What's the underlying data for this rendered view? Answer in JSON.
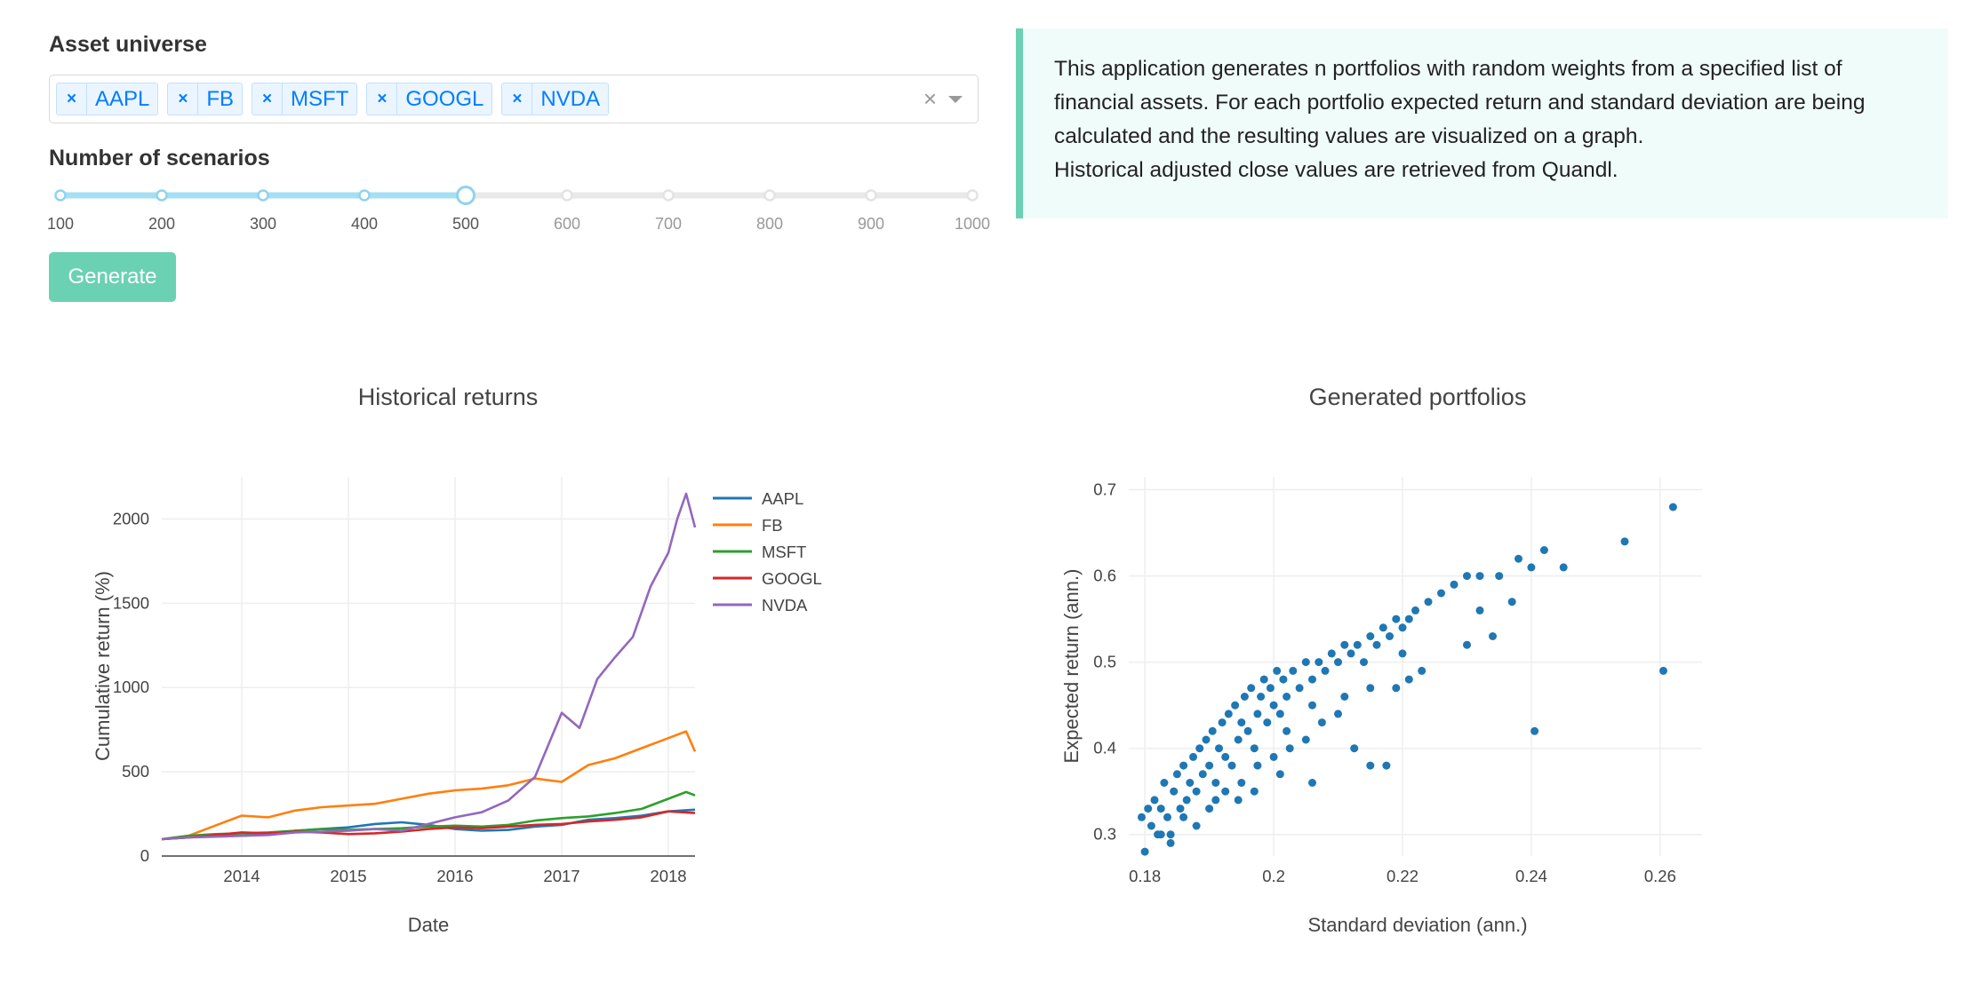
{
  "controls": {
    "asset_label": "Asset universe",
    "assets": [
      "AAPL",
      "FB",
      "MSFT",
      "GOOGL",
      "NVDA"
    ],
    "chip_remove": "×",
    "clear": "×",
    "scenarios_label": "Number of scenarios",
    "slider": {
      "marks": [
        "100",
        "200",
        "300",
        "400",
        "500",
        "600",
        "700",
        "800",
        "900",
        "1000"
      ],
      "value": 500,
      "active_color": "#a6dff3",
      "inactive_color": "#e9e9e9"
    },
    "generate_label": "Generate"
  },
  "info": {
    "lines": [
      "This application generates n portfolios with random weights from a specified list of",
      "financial assets. For each portfolio expected return and standard deviation are being",
      "calculated and the resulting values are visualized on a graph.",
      "Historical adjusted close values are retrieved from Quandl."
    ]
  },
  "chart_data": [
    {
      "type": "line",
      "title": "Historical returns",
      "xlabel": "Date",
      "ylabel": "Cumulative return (%)",
      "x_ticks": [
        "2014",
        "2015",
        "2016",
        "2017",
        "2018"
      ],
      "y_ticks": [
        0,
        500,
        1000,
        1500,
        2000
      ],
      "xlim": [
        "2013-04",
        "2018-04"
      ],
      "ylim": [
        0,
        2250
      ],
      "grid": true,
      "legend": "right",
      "series": [
        {
          "name": "AAPL",
          "color": "#1f77b4",
          "points": [
            [
              "2013-04",
              100
            ],
            [
              "2013-07",
              110
            ],
            [
              "2013-10",
              125
            ],
            [
              "2014-01",
              120
            ],
            [
              "2014-04",
              130
            ],
            [
              "2014-07",
              150
            ],
            [
              "2014-10",
              160
            ],
            [
              "2015-01",
              170
            ],
            [
              "2015-04",
              190
            ],
            [
              "2015-07",
              200
            ],
            [
              "2015-10",
              185
            ],
            [
              "2016-01",
              160
            ],
            [
              "2016-04",
              150
            ],
            [
              "2016-07",
              155
            ],
            [
              "2016-10",
              175
            ],
            [
              "2017-01",
              185
            ],
            [
              "2017-04",
              215
            ],
            [
              "2017-07",
              225
            ],
            [
              "2017-10",
              240
            ],
            [
              "2018-01",
              265
            ],
            [
              "2018-04",
              275
            ]
          ]
        },
        {
          "name": "FB",
          "color": "#ff7f0e",
          "points": [
            [
              "2013-04",
              100
            ],
            [
              "2013-07",
              120
            ],
            [
              "2013-10",
              180
            ],
            [
              "2014-01",
              240
            ],
            [
              "2014-04",
              230
            ],
            [
              "2014-07",
              270
            ],
            [
              "2014-10",
              290
            ],
            [
              "2015-01",
              300
            ],
            [
              "2015-04",
              310
            ],
            [
              "2015-07",
              340
            ],
            [
              "2015-10",
              370
            ],
            [
              "2016-01",
              390
            ],
            [
              "2016-04",
              400
            ],
            [
              "2016-07",
              420
            ],
            [
              "2016-10",
              460
            ],
            [
              "2017-01",
              440
            ],
            [
              "2017-04",
              540
            ],
            [
              "2017-07",
              580
            ],
            [
              "2017-10",
              640
            ],
            [
              "2018-01",
              700
            ],
            [
              "2018-03",
              740
            ],
            [
              "2018-04",
              620
            ]
          ]
        },
        {
          "name": "MSFT",
          "color": "#2ca02c",
          "points": [
            [
              "2013-04",
              100
            ],
            [
              "2013-07",
              120
            ],
            [
              "2013-10",
              130
            ],
            [
              "2014-01",
              135
            ],
            [
              "2014-04",
              140
            ],
            [
              "2014-07",
              150
            ],
            [
              "2014-10",
              160
            ],
            [
              "2015-01",
              155
            ],
            [
              "2015-04",
              160
            ],
            [
              "2015-07",
              165
            ],
            [
              "2015-10",
              175
            ],
            [
              "2016-01",
              180
            ],
            [
              "2016-04",
              175
            ],
            [
              "2016-07",
              185
            ],
            [
              "2016-10",
              210
            ],
            [
              "2017-01",
              225
            ],
            [
              "2017-04",
              235
            ],
            [
              "2017-07",
              255
            ],
            [
              "2017-10",
              280
            ],
            [
              "2018-01",
              340
            ],
            [
              "2018-03",
              380
            ],
            [
              "2018-04",
              360
            ]
          ]
        },
        {
          "name": "GOOGL",
          "color": "#d62728",
          "points": [
            [
              "2013-04",
              100
            ],
            [
              "2013-07",
              110
            ],
            [
              "2013-10",
              125
            ],
            [
              "2014-01",
              140
            ],
            [
              "2014-04",
              135
            ],
            [
              "2014-07",
              145
            ],
            [
              "2014-10",
              140
            ],
            [
              "2015-01",
              130
            ],
            [
              "2015-04",
              135
            ],
            [
              "2015-07",
              145
            ],
            [
              "2015-10",
              160
            ],
            [
              "2016-01",
              170
            ],
            [
              "2016-04",
              165
            ],
            [
              "2016-07",
              175
            ],
            [
              "2016-10",
              185
            ],
            [
              "2017-01",
              190
            ],
            [
              "2017-04",
              205
            ],
            [
              "2017-07",
              215
            ],
            [
              "2017-10",
              230
            ],
            [
              "2018-01",
              265
            ],
            [
              "2018-04",
              255
            ]
          ]
        },
        {
          "name": "NVDA",
          "color": "#9467bd",
          "points": [
            [
              "2013-04",
              100
            ],
            [
              "2013-07",
              110
            ],
            [
              "2013-10",
              115
            ],
            [
              "2014-01",
              120
            ],
            [
              "2014-04",
              125
            ],
            [
              "2014-07",
              140
            ],
            [
              "2014-10",
              145
            ],
            [
              "2015-01",
              150
            ],
            [
              "2015-04",
              160
            ],
            [
              "2015-07",
              150
            ],
            [
              "2015-10",
              190
            ],
            [
              "2016-01",
              230
            ],
            [
              "2016-04",
              260
            ],
            [
              "2016-07",
              330
            ],
            [
              "2016-10",
              470
            ],
            [
              "2017-01",
              850
            ],
            [
              "2017-03",
              760
            ],
            [
              "2017-05",
              1050
            ],
            [
              "2017-07",
              1180
            ],
            [
              "2017-09",
              1300
            ],
            [
              "2017-11",
              1600
            ],
            [
              "2018-01",
              1800
            ],
            [
              "2018-02",
              2000
            ],
            [
              "2018-03",
              2150
            ],
            [
              "2018-04",
              1950
            ]
          ]
        }
      ]
    },
    {
      "type": "scatter",
      "title": "Generated portfolios",
      "xlabel": "Standard deviation (ann.)",
      "ylabel": "Expected return (ann.)",
      "x_ticks": [
        "0.18",
        "0.2",
        "0.22",
        "0.24",
        "0.26"
      ],
      "y_ticks": [
        "0.3",
        "0.4",
        "0.5",
        "0.6",
        "0.7"
      ],
      "xlim": [
        0.1775,
        0.2665
      ],
      "ylim": [
        0.275,
        0.715
      ],
      "grid": true,
      "marker_color": "#1f77b4",
      "points": [
        [
          0.1795,
          0.32
        ],
        [
          0.18,
          0.28
        ],
        [
          0.1805,
          0.33
        ],
        [
          0.181,
          0.31
        ],
        [
          0.1815,
          0.34
        ],
        [
          0.182,
          0.3
        ],
        [
          0.1825,
          0.33
        ],
        [
          0.183,
          0.36
        ],
        [
          0.1835,
          0.32
        ],
        [
          0.184,
          0.3
        ],
        [
          0.1845,
          0.35
        ],
        [
          0.185,
          0.37
        ],
        [
          0.1855,
          0.33
        ],
        [
          0.186,
          0.38
        ],
        [
          0.1865,
          0.34
        ],
        [
          0.187,
          0.36
        ],
        [
          0.1875,
          0.39
        ],
        [
          0.188,
          0.35
        ],
        [
          0.1885,
          0.4
        ],
        [
          0.189,
          0.37
        ],
        [
          0.1895,
          0.41
        ],
        [
          0.19,
          0.38
        ],
        [
          0.1905,
          0.42
        ],
        [
          0.191,
          0.36
        ],
        [
          0.1915,
          0.4
        ],
        [
          0.192,
          0.43
        ],
        [
          0.1925,
          0.39
        ],
        [
          0.193,
          0.44
        ],
        [
          0.1935,
          0.38
        ],
        [
          0.194,
          0.45
        ],
        [
          0.1945,
          0.41
        ],
        [
          0.195,
          0.43
        ],
        [
          0.1955,
          0.46
        ],
        [
          0.196,
          0.42
        ],
        [
          0.1965,
          0.47
        ],
        [
          0.197,
          0.4
        ],
        [
          0.1975,
          0.44
        ],
        [
          0.198,
          0.46
        ],
        [
          0.1985,
          0.48
        ],
        [
          0.199,
          0.43
        ],
        [
          0.1995,
          0.47
        ],
        [
          0.2,
          0.45
        ],
        [
          0.2005,
          0.49
        ],
        [
          0.201,
          0.44
        ],
        [
          0.2015,
          0.48
        ],
        [
          0.202,
          0.46
        ],
        [
          0.203,
          0.49
        ],
        [
          0.204,
          0.47
        ],
        [
          0.205,
          0.5
        ],
        [
          0.206,
          0.48
        ],
        [
          0.207,
          0.5
        ],
        [
          0.208,
          0.49
        ],
        [
          0.209,
          0.51
        ],
        [
          0.21,
          0.5
        ],
        [
          0.211,
          0.52
        ],
        [
          0.212,
          0.51
        ],
        [
          0.213,
          0.52
        ],
        [
          0.214,
          0.5
        ],
        [
          0.215,
          0.53
        ],
        [
          0.216,
          0.52
        ],
        [
          0.217,
          0.54
        ],
        [
          0.218,
          0.53
        ],
        [
          0.219,
          0.55
        ],
        [
          0.22,
          0.54
        ],
        [
          0.221,
          0.55
        ],
        [
          0.222,
          0.56
        ],
        [
          0.224,
          0.57
        ],
        [
          0.226,
          0.58
        ],
        [
          0.228,
          0.59
        ],
        [
          0.23,
          0.6
        ],
        [
          0.232,
          0.6
        ],
        [
          0.235,
          0.6
        ],
        [
          0.238,
          0.62
        ],
        [
          0.24,
          0.61
        ],
        [
          0.242,
          0.63
        ],
        [
          0.245,
          0.61
        ],
        [
          0.2545,
          0.64
        ],
        [
          0.262,
          0.68
        ],
        [
          0.2605,
          0.49
        ],
        [
          0.2405,
          0.42
        ],
        [
          0.19,
          0.33
        ],
        [
          0.1925,
          0.35
        ],
        [
          0.195,
          0.36
        ],
        [
          0.1975,
          0.38
        ],
        [
          0.2,
          0.39
        ],
        [
          0.2025,
          0.4
        ],
        [
          0.205,
          0.41
        ],
        [
          0.2075,
          0.43
        ],
        [
          0.21,
          0.44
        ],
        [
          0.2125,
          0.4
        ],
        [
          0.215,
          0.38
        ],
        [
          0.2175,
          0.38
        ],
        [
          0.219,
          0.47
        ],
        [
          0.221,
          0.48
        ],
        [
          0.223,
          0.49
        ],
        [
          0.1945,
          0.34
        ],
        [
          0.197,
          0.35
        ],
        [
          0.201,
          0.37
        ],
        [
          0.206,
          0.36
        ],
        [
          0.202,
          0.42
        ],
        [
          0.206,
          0.45
        ],
        [
          0.211,
          0.46
        ],
        [
          0.215,
          0.47
        ],
        [
          0.232,
          0.56
        ],
        [
          0.23,
          0.52
        ],
        [
          0.234,
          0.53
        ],
        [
          0.237,
          0.57
        ],
        [
          0.22,
          0.51
        ],
        [
          0.188,
          0.31
        ],
        [
          0.186,
          0.32
        ],
        [
          0.184,
          0.29
        ],
        [
          0.1825,
          0.3
        ],
        [
          0.191,
          0.34
        ]
      ]
    }
  ]
}
